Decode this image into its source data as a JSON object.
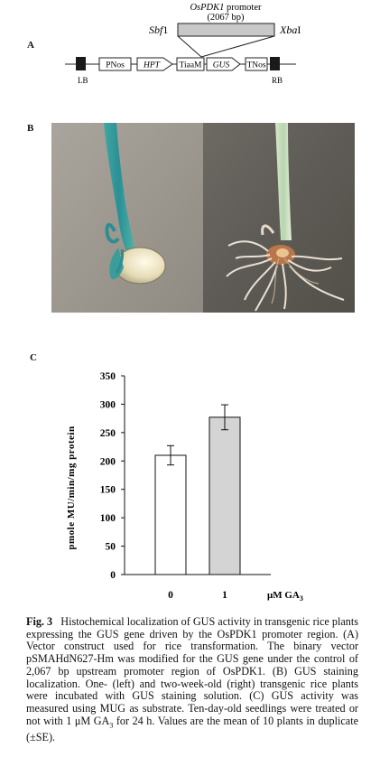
{
  "panel_a": {
    "label": "A",
    "promoter_name": "OsPDK1",
    "promoter_suffix": " promoter",
    "promoter_length": "(2067 bp)",
    "site_left": "Sbf",
    "site_left_num": "1",
    "site_right": "Xba",
    "site_right_num": "I",
    "elements": [
      "LB",
      "PNos",
      "HPT",
      "TiaaM",
      "GUS",
      "TNos",
      "RB"
    ]
  },
  "panel_b": {
    "label": "B"
  },
  "chart_data": {
    "type": "bar",
    "categories": [
      "0",
      "1"
    ],
    "values": [
      210,
      277
    ],
    "errors": [
      17,
      22
    ],
    "bar_colors": [
      "#ffffff",
      "#d4d4d4"
    ],
    "ylabel": "pmole MU/min/mg protein",
    "xlabel_main": "μM GA",
    "xlabel_sub": "3",
    "ylim": [
      0,
      350
    ],
    "yticks": [
      0,
      50,
      100,
      150,
      200,
      250,
      300,
      350
    ],
    "label": "C"
  },
  "caption": {
    "fig": "Fig. 3",
    "text_a": "Histochemical localization of GUS activity in transgenic rice plants expressing the GUS gene driven by the OsPDK1 promoter region. (A) Vector construct used for rice transformation. The binary vector pSMAHdN627-Hm was modified for the GUS gene under the control of 2,067 bp upstream promoter region of OsPDK1. (B) GUS staining localization. One- (left) and two-week-old (right) transgenic rice plants were incubated with GUS staining solution. (C) GUS activity was measured using MUG as substrate. Ten-day-old seedlings were treated or not with 1 μM GA",
    "text_sub": "3",
    "text_b": " for 24 h. Values are the mean of 10 plants in duplicate (±SE)."
  }
}
